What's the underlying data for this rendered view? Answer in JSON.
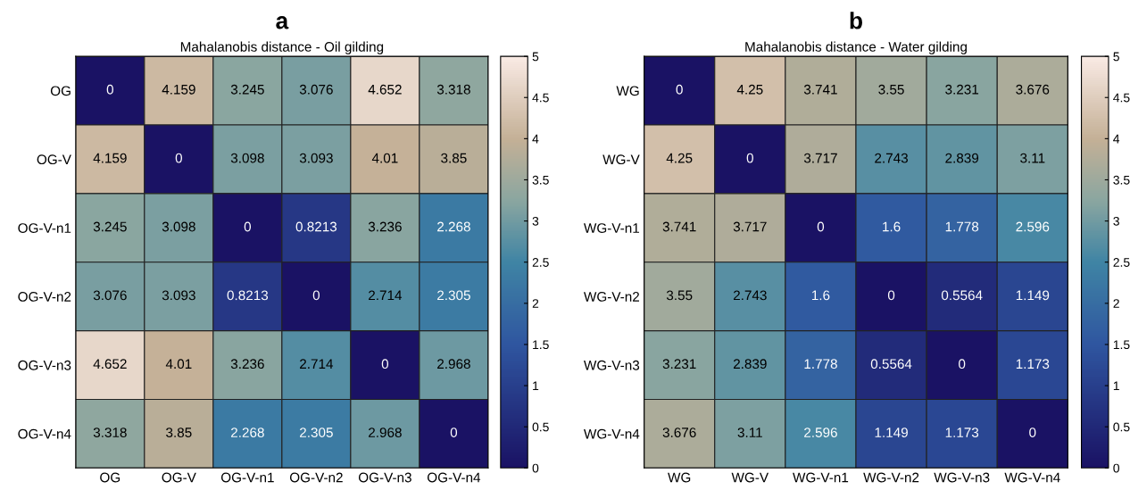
{
  "chart_data": [
    {
      "type": "heatmap",
      "title": "a",
      "subtitle": "Mahalanobis distance - Oil gilding",
      "categories": [
        "OG",
        "OG-V",
        "OG-V-n1",
        "OG-V-n2",
        "OG-V-n3",
        "OG-V-n4"
      ],
      "y_categories": [
        "OG",
        "OG-V",
        "OG-V-n1",
        "OG-V-n2",
        "OG-V-n3",
        "OG-V-n4"
      ],
      "cells": [
        [
          0,
          4.159,
          3.245,
          3.076,
          4.652,
          3.318
        ],
        [
          4.159,
          0,
          3.098,
          3.093,
          4.01,
          3.85
        ],
        [
          3.245,
          3.098,
          0,
          0.8213,
          3.236,
          2.268
        ],
        [
          3.076,
          3.093,
          0.8213,
          0,
          2.714,
          2.305
        ],
        [
          4.652,
          4.01,
          3.236,
          2.714,
          0,
          2.968
        ],
        [
          3.318,
          3.85,
          2.268,
          2.305,
          2.968,
          0
        ]
      ],
      "clim": [
        0,
        5
      ],
      "cticks": [
        0,
        0.5,
        1,
        1.5,
        2,
        2.5,
        3,
        3.5,
        4,
        4.5,
        5
      ],
      "data_labels": true
    },
    {
      "type": "heatmap",
      "title": "b",
      "subtitle": "Mahalanobis distance - Water gilding",
      "categories": [
        "WG",
        "WG-V",
        "WG-V-n1",
        "WG-V-n2",
        "WG-V-n3",
        "WG-V-n4"
      ],
      "y_categories": [
        "WG",
        "WG-V",
        "WG-V-n1",
        "WG-V-n2",
        "WG-V-n3",
        "WG-V-n4"
      ],
      "cells": [
        [
          0,
          4.25,
          3.741,
          3.55,
          3.231,
          3.676
        ],
        [
          4.25,
          0,
          3.717,
          2.743,
          2.839,
          3.11
        ],
        [
          3.741,
          3.717,
          0,
          1.6,
          1.778,
          2.596
        ],
        [
          3.55,
          2.743,
          1.6,
          0,
          0.5564,
          1.149
        ],
        [
          3.231,
          2.839,
          1.778,
          0.5564,
          0,
          1.173
        ],
        [
          3.676,
          3.11,
          2.596,
          1.149,
          1.173,
          0
        ]
      ],
      "clim": [
        0,
        5
      ],
      "cticks": [
        0,
        0.5,
        1,
        1.5,
        2,
        2.5,
        3,
        3.5,
        4,
        4.5,
        5
      ],
      "data_labels": true
    }
  ]
}
